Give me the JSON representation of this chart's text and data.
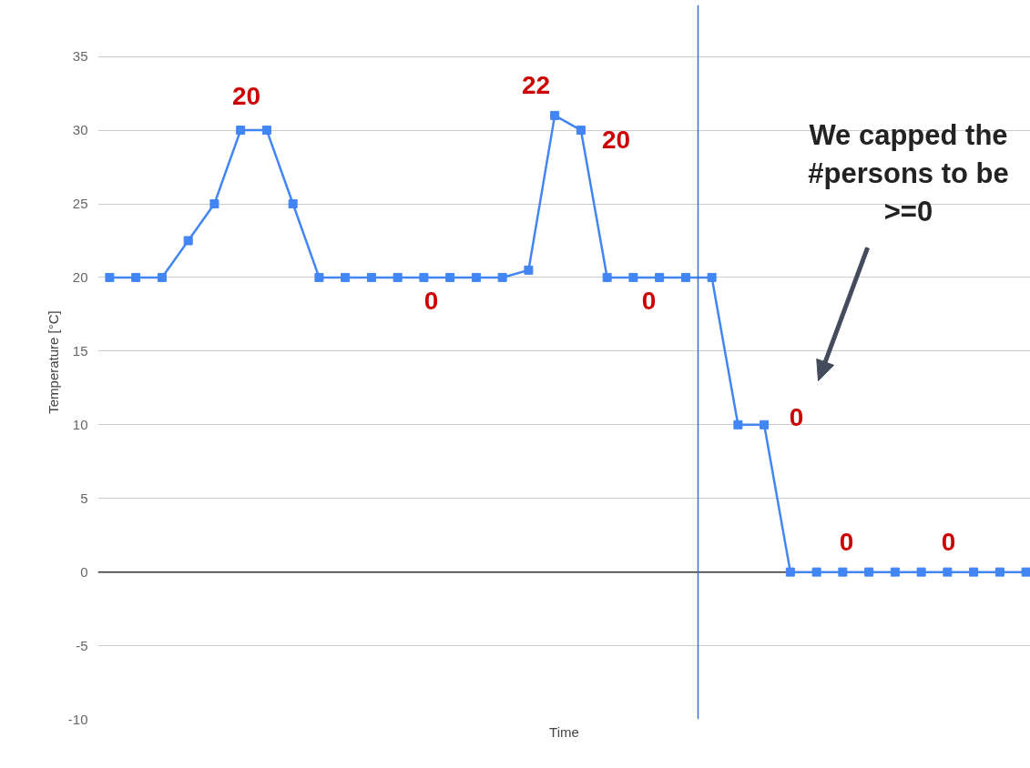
{
  "chart_data": {
    "type": "line",
    "xlabel": "Time",
    "ylabel": "Temperature [°C]",
    "categories": [
      null,
      null,
      null,
      null,
      null,
      null,
      null,
      null,
      null,
      null,
      null,
      null,
      null,
      null,
      null,
      null,
      null,
      null,
      null,
      null,
      null,
      null,
      null,
      null,
      null,
      null,
      null,
      null,
      null,
      null,
      null,
      null,
      null,
      null,
      null,
      null
    ],
    "ylim": [
      -10,
      38.5
    ],
    "yticks": [
      -10,
      -5,
      0,
      5,
      10,
      15,
      20,
      25,
      30,
      35
    ],
    "series": [
      {
        "color": "#4285f4",
        "values": [
          20,
          20,
          20,
          22.5,
          25,
          30,
          30,
          25,
          20,
          20,
          20,
          20,
          20,
          20,
          20,
          20,
          20.5,
          31,
          30,
          20,
          20,
          20,
          20,
          20,
          10,
          10,
          0,
          0,
          0,
          0,
          0,
          0,
          0,
          0,
          0,
          0
        ]
      }
    ],
    "marker": "square",
    "line_style": "solid",
    "grid": "y",
    "ref_lines": [
      {
        "axis": "y",
        "value": 0,
        "color": "#333333"
      }
    ],
    "annotations": [
      "20",
      "22",
      "20",
      "0",
      "0",
      "0",
      "0",
      "0",
      "We capped the\n#persons to be\n>=0"
    ]
  }
}
